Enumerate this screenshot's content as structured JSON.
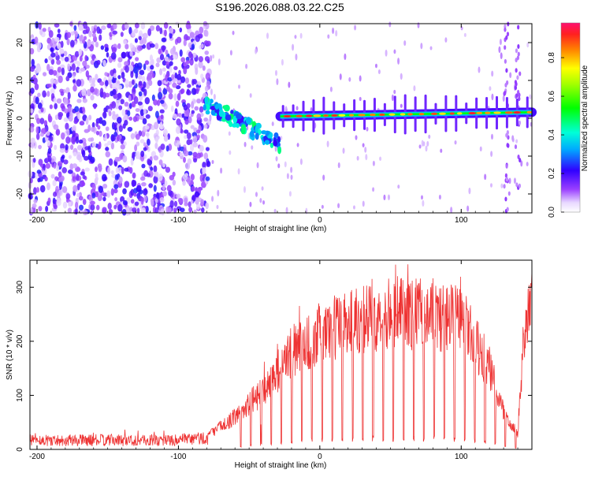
{
  "chart_data": [
    {
      "type": "heatmap",
      "title": "S196.2026.088.03.22.C25",
      "xlabel": "Height of straight line (km)",
      "ylabel": "Frequency (Hz)",
      "xlim": [
        -205,
        150
      ],
      "ylim": [
        -25,
        25
      ],
      "xticks": [
        -200,
        -100,
        0,
        100
      ],
      "xtick_labels": [
        "-200",
        "-100",
        "0",
        "100"
      ],
      "yticks": [
        -20,
        -10,
        0,
        10,
        20
      ],
      "ytick_labels": [
        "-20",
        "-10",
        "0",
        "10",
        "20"
      ],
      "colorbar": {
        "label": "Normalized spectral amplitude",
        "ticks": [
          0.0,
          0.2,
          0.4,
          0.6,
          0.8
        ],
        "tick_labels": [
          "0.0",
          "0.2",
          "0.4",
          "0.6",
          "0.8"
        ],
        "range": [
          0,
          0.98
        ]
      },
      "features": {
        "noise_region_x": [
          -205,
          -80
        ],
        "descending_trace": {
          "x": [
            -82,
            -28
          ],
          "y": [
            4,
            -7
          ]
        },
        "carrier_trace": {
          "x": [
            -28,
            150
          ],
          "y": [
            0.5,
            1.6
          ]
        }
      }
    },
    {
      "type": "line",
      "xlabel": "Height of straight line (km)",
      "ylabel": "SNR (10 * v/v)",
      "xlim": [
        -205,
        150
      ],
      "ylim": [
        0,
        350
      ],
      "xticks": [
        -200,
        -100,
        0,
        100
      ],
      "xtick_labels": [
        "-200",
        "-100",
        "0",
        "100"
      ],
      "yticks": [
        0,
        100,
        200,
        300
      ],
      "ytick_labels": [
        "0",
        "100",
        "200",
        "300"
      ],
      "color": "#ee3333",
      "envelope": {
        "x": [
          -205,
          -150,
          -100,
          -80,
          -60,
          -40,
          -20,
          0,
          20,
          40,
          60,
          80,
          100,
          110,
          120,
          130,
          140,
          145,
          150
        ],
        "y": [
          20,
          20,
          20,
          25,
          60,
          110,
          180,
          215,
          240,
          250,
          255,
          250,
          240,
          200,
          150,
          70,
          30,
          240,
          270
        ]
      }
    }
  ]
}
